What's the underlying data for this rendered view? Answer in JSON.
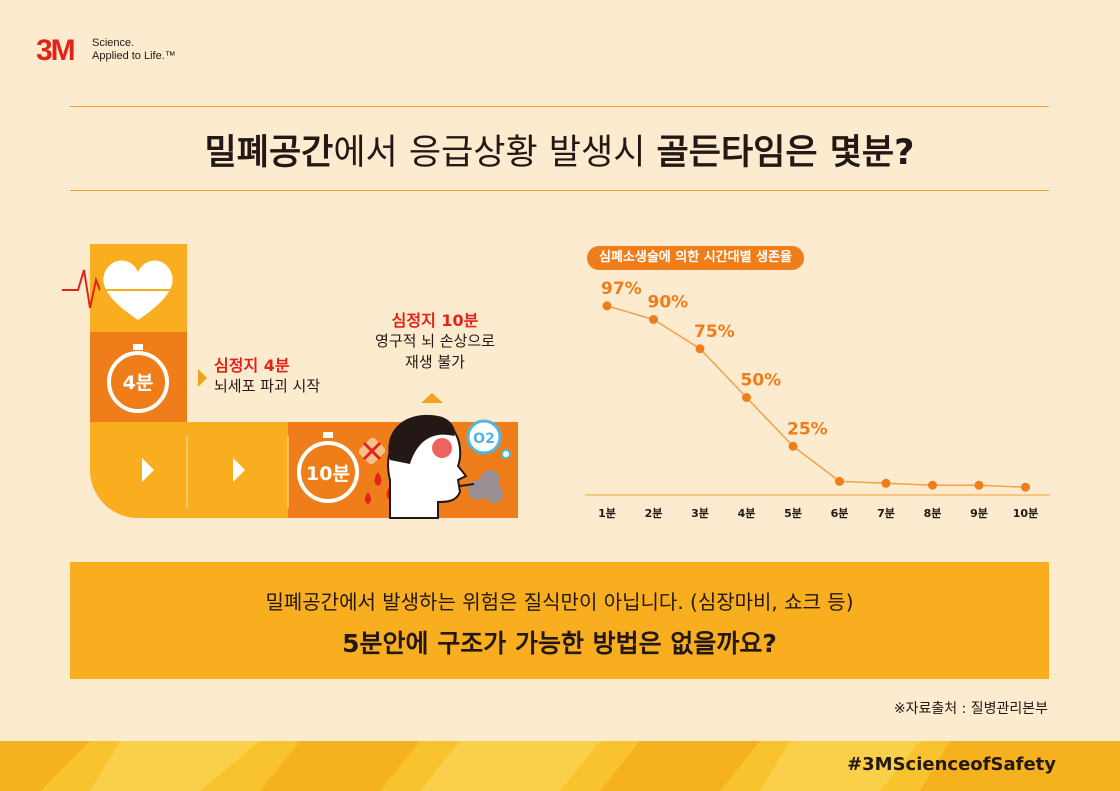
{
  "brand": {
    "logo_text": "3M",
    "tagline_line1": "Science.",
    "tagline_line2": "Applied to Life.™"
  },
  "title": {
    "part1_bold": "밀폐공간",
    "part2": "에서 응급상황 발생시 ",
    "part3_bold": "골든타임은 몇분?"
  },
  "timeline": {
    "stage1_time": "4분",
    "stage1_heading": "심정지 4분",
    "stage1_text": "뇌세포 파괴 시작",
    "stage2_time": "10분",
    "stage2_heading": "심정지 10분",
    "stage2_text_line1": "영구적 뇌 손상으로",
    "stage2_text_line2": "재생 불가",
    "oxygen_label": "O2"
  },
  "chart_data": {
    "type": "line",
    "title": "심폐소생술에 의한 시간대별 생존율",
    "categories": [
      "1분",
      "2분",
      "3분",
      "4분",
      "5분",
      "6분",
      "7분",
      "8분",
      "9분",
      "10분"
    ],
    "values": [
      97,
      90,
      75,
      50,
      25,
      7,
      6,
      5,
      5,
      4
    ],
    "data_labels": [
      "97%",
      "90%",
      "75%",
      "50%",
      "25%",
      "",
      "",
      "",
      "",
      ""
    ],
    "xlabel": "",
    "ylabel": "",
    "ylim": [
      0,
      100
    ],
    "grid": false,
    "color": "#ee7d1a"
  },
  "banner": {
    "line1": "밀폐공간에서 발생하는 위험은 질식만이 아닙니다. (심장마비, 쇼크 등)",
    "line2": "5분안에 구조가 가능한 방법은 없을까요?"
  },
  "source": "※자료출처 : 질병관리본부",
  "hashtag": "#3MScienceofSafety",
  "colors": {
    "background": "#fcebcf",
    "orange": "#ee7d1a",
    "yellow": "#f8ae1e",
    "red": "#e2231a"
  }
}
